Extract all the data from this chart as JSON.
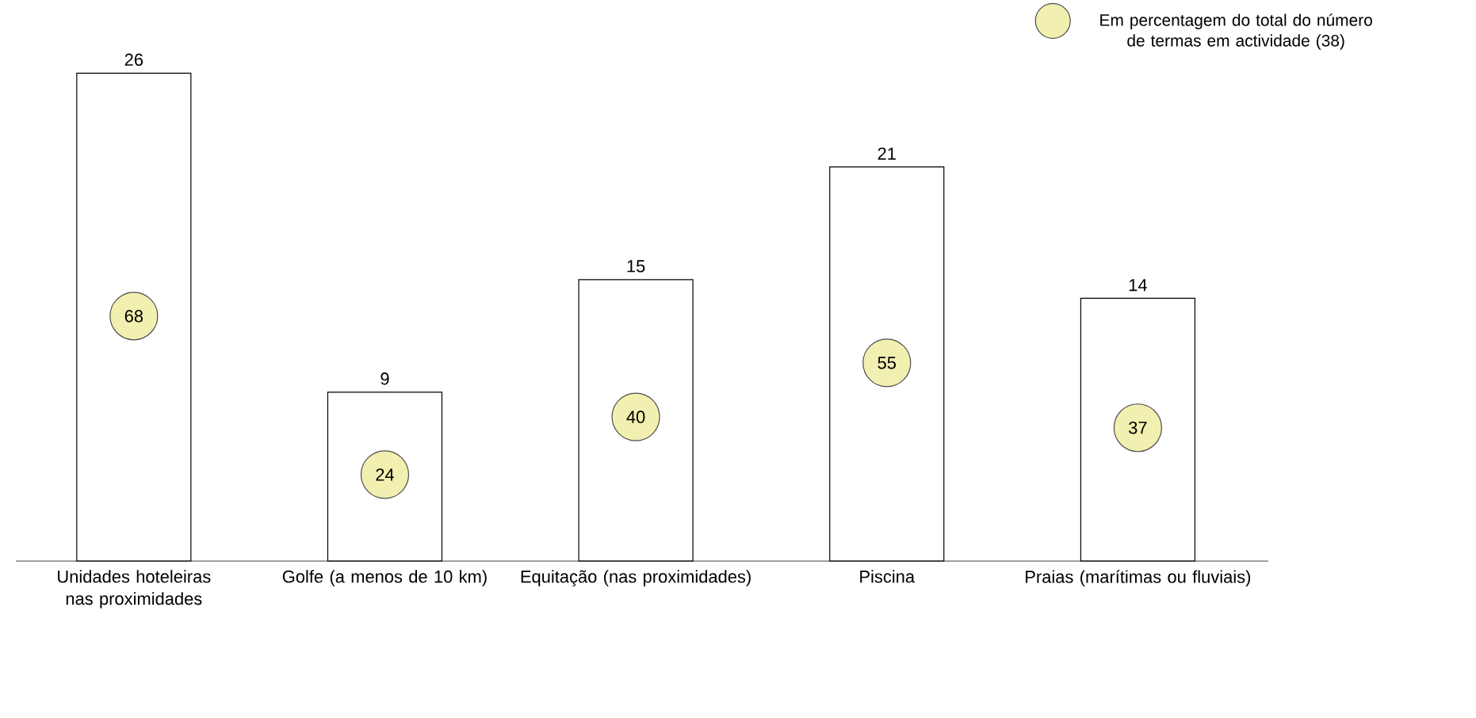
{
  "chart_data": {
    "type": "bar",
    "categories": [
      "Unidades hoteleiras nas proximidades",
      "Golfe (a menos de 10 km)",
      "Equitação (nas proximidades)",
      "Piscina",
      "Praias (marítimas ou fluviais)"
    ],
    "series": [
      {
        "color": "#ffffff",
        "values": [
          26,
          9,
          15,
          21,
          14
        ]
      },
      {
        "type": "scatter",
        "name": "Em percentagem do total do número de termas em actividade (38)",
        "color": "#f2f0b0",
        "axis": "y2",
        "values": [
          68,
          24,
          40,
          55,
          37
        ]
      }
    ],
    "tick_labels": "x",
    "data_labels": true,
    "legend": "top right",
    "marker": "circle"
  }
}
